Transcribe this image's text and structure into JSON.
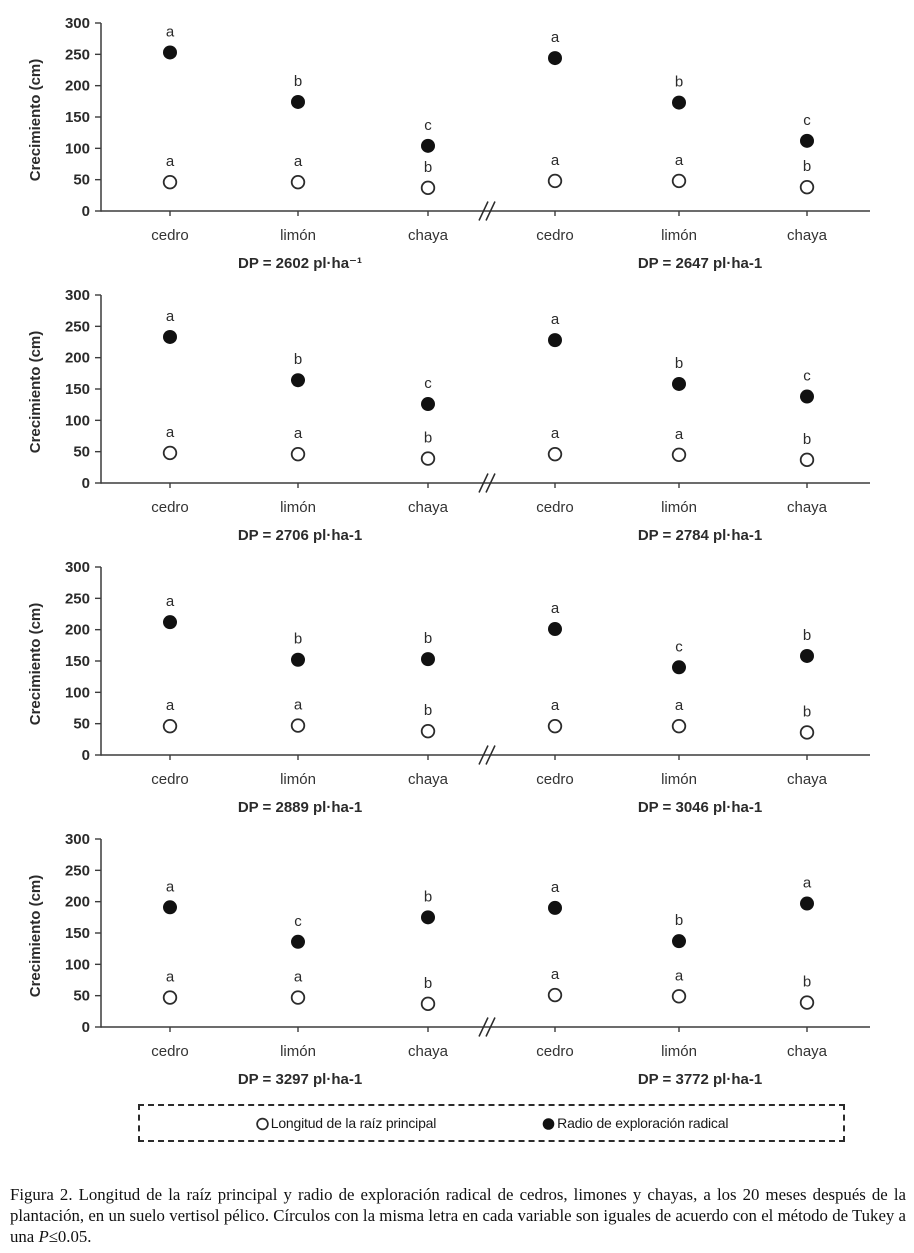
{
  "chart_data": [
    {
      "type": "scatter",
      "ylabel": "Crecimiento (cm)",
      "ylim": [
        0,
        300
      ],
      "yticks": [
        0,
        50,
        100,
        150,
        200,
        250,
        300
      ],
      "axis_break_between_groups": true,
      "groups": [
        {
          "dp_label": "DP = 2602 pl·ha⁻¹",
          "categories": [
            "cedro",
            "limón",
            "chaya"
          ],
          "series": [
            {
              "name": "Radio de exploración radical",
              "marker": "filled",
              "values": [
                253,
                174,
                104
              ],
              "letters": [
                "a",
                "b",
                "c"
              ]
            },
            {
              "name": "Longitud de la raíz principal",
              "marker": "open",
              "values": [
                46,
                46,
                37
              ],
              "letters": [
                "a",
                "a",
                "b"
              ]
            }
          ]
        },
        {
          "dp_label": "DP = 2647 pl·ha-1",
          "categories": [
            "cedro",
            "limón",
            "chaya"
          ],
          "series": [
            {
              "name": "Radio de exploración radical",
              "marker": "filled",
              "values": [
                244,
                173,
                112
              ],
              "letters": [
                "a",
                "b",
                "c"
              ]
            },
            {
              "name": "Longitud de la raíz principal",
              "marker": "open",
              "values": [
                48,
                48,
                38
              ],
              "letters": [
                "a",
                "a",
                "b"
              ]
            }
          ]
        }
      ]
    },
    {
      "type": "scatter",
      "ylabel": "Crecimiento (cm)",
      "ylim": [
        0,
        300
      ],
      "yticks": [
        0,
        50,
        100,
        150,
        200,
        250,
        300
      ],
      "axis_break_between_groups": true,
      "groups": [
        {
          "dp_label": "DP = 2706 pl·ha-1",
          "categories": [
            "cedro",
            "limón",
            "chaya"
          ],
          "series": [
            {
              "name": "Radio de exploración radical",
              "marker": "filled",
              "values": [
                233,
                164,
                126
              ],
              "letters": [
                "a",
                "b",
                "c"
              ]
            },
            {
              "name": "Longitud de la raíz principal",
              "marker": "open",
              "values": [
                48,
                46,
                39
              ],
              "letters": [
                "a",
                "a",
                "b"
              ]
            }
          ]
        },
        {
          "dp_label": "DP = 2784 pl·ha-1",
          "categories": [
            "cedro",
            "limón",
            "chaya"
          ],
          "series": [
            {
              "name": "Radio de exploración radical",
              "marker": "filled",
              "values": [
                228,
                158,
                138
              ],
              "letters": [
                "a",
                "b",
                "c"
              ]
            },
            {
              "name": "Longitud de la raíz principal",
              "marker": "open",
              "values": [
                46,
                45,
                37
              ],
              "letters": [
                "a",
                "a",
                "b"
              ]
            }
          ]
        }
      ]
    },
    {
      "type": "scatter",
      "ylabel": "Crecimiento (cm)",
      "ylim": [
        0,
        300
      ],
      "yticks": [
        0,
        50,
        100,
        150,
        200,
        250,
        300
      ],
      "axis_break_between_groups": true,
      "groups": [
        {
          "dp_label": "DP = 2889 pl·ha-1",
          "categories": [
            "cedro",
            "limón",
            "chaya"
          ],
          "series": [
            {
              "name": "Radio de exploración radical",
              "marker": "filled",
              "values": [
                212,
                152,
                153
              ],
              "letters": [
                "a",
                "b",
                "b"
              ]
            },
            {
              "name": "Longitud de la raíz principal",
              "marker": "open",
              "values": [
                46,
                47,
                38
              ],
              "letters": [
                "a",
                "a",
                "b"
              ]
            }
          ]
        },
        {
          "dp_label": "DP = 3046 pl·ha-1",
          "categories": [
            "cedro",
            "limón",
            "chaya"
          ],
          "series": [
            {
              "name": "Radio de exploración radical",
              "marker": "filled",
              "values": [
                201,
                140,
                158
              ],
              "letters": [
                "a",
                "c",
                "b"
              ]
            },
            {
              "name": "Longitud de la raíz principal",
              "marker": "open",
              "values": [
                46,
                46,
                36
              ],
              "letters": [
                "a",
                "a",
                "b"
              ]
            }
          ]
        }
      ]
    },
    {
      "type": "scatter",
      "ylabel": "Crecimiento (cm)",
      "ylim": [
        0,
        300
      ],
      "yticks": [
        0,
        50,
        100,
        150,
        200,
        250,
        300
      ],
      "axis_break_between_groups": true,
      "groups": [
        {
          "dp_label": "DP = 3297 pl·ha-1",
          "categories": [
            "cedro",
            "limón",
            "chaya"
          ],
          "series": [
            {
              "name": "Radio de exploración radical",
              "marker": "filled",
              "values": [
                191,
                136,
                175
              ],
              "letters": [
                "a",
                "c",
                "b"
              ]
            },
            {
              "name": "Longitud de la raíz principal",
              "marker": "open",
              "values": [
                47,
                47,
                37
              ],
              "letters": [
                "a",
                "a",
                "b"
              ]
            }
          ]
        },
        {
          "dp_label": "DP = 3772 pl·ha-1",
          "categories": [
            "cedro",
            "limón",
            "chaya"
          ],
          "series": [
            {
              "name": "Radio de exploración radical",
              "marker": "filled",
              "values": [
                190,
                137,
                197
              ],
              "letters": [
                "a",
                "b",
                "a"
              ]
            },
            {
              "name": "Longitud de la raíz principal",
              "marker": "open",
              "values": [
                51,
                49,
                39
              ],
              "letters": [
                "a",
                "a",
                "b"
              ]
            }
          ]
        }
      ]
    }
  ],
  "legend": {
    "position": "bottom",
    "open_label": "Longitud de la raíz principal",
    "filled_label": "Radio de exploración radical"
  },
  "caption": {
    "text_before": "Figura 2. Longitud de la raíz principal y radio de exploración radical de cedros, limones y chayas, a los 20 meses después de la plantación, en un suelo vertisol pélico. Círculos con la misma letra en cada variable son iguales de acuerdo con el método de Tukey a una ",
    "p_italic": "P",
    "text_after": "≤0.05."
  },
  "colors": {
    "marker_fill": "#111111",
    "marker_stroke": "#2b2b2b",
    "axis": "#3c3c3c",
    "text": "#2b2b2b"
  }
}
